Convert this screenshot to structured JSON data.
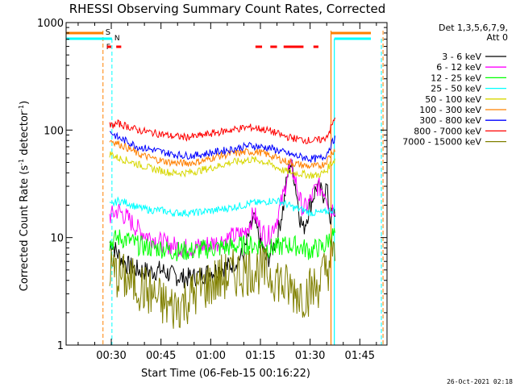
{
  "chart_data": {
    "type": "line",
    "title": "RHESSI Observing Summary Count Rates, Corrected",
    "xlabel": "Start Time (06-Feb-15 00:16:22)",
    "ylabel": "Corrected Count Rate (s⁻¹ detector⁻¹)",
    "ylabel_main": "Corrected Count Rate (s",
    "ylabel_sup1": "-1",
    "ylabel_mid": " detector",
    "ylabel_sup2": "-1",
    "ylabel_end": ")",
    "yscale": "log",
    "ylim": [
      1,
      1000
    ],
    "xlim_minutes": [
      16.37,
      113.2
    ],
    "yticks": [
      1,
      10,
      100,
      1000
    ],
    "ytick_labels": [
      "1",
      "10",
      "100",
      "1000"
    ],
    "xticks_minutes": [
      30,
      45,
      60,
      75,
      90,
      105
    ],
    "xtick_labels": [
      "00:30",
      "00:45",
      "01:00",
      "01:15",
      "01:30",
      "01:45"
    ],
    "grid": false,
    "legend_title": "Det 1,3,5,6,7,9,",
    "legend_subtitle": "Att 0",
    "legend_position": "right",
    "series": [
      {
        "name": "3 - 6 keV",
        "color": "#000000",
        "x": [
          30,
          32,
          35,
          38,
          42,
          45,
          48,
          52,
          55,
          58,
          62,
          66,
          70,
          72,
          73,
          75,
          77,
          78,
          80,
          82,
          83,
          84,
          85,
          86,
          87,
          88,
          90,
          92,
          94,
          95,
          96,
          98
        ],
        "y": [
          9,
          7,
          5.5,
          5,
          4.8,
          5,
          4.5,
          4.2,
          4.3,
          4.6,
          5,
          5.5,
          7,
          12,
          15,
          9,
          6,
          7,
          10,
          20,
          35,
          50,
          40,
          25,
          15,
          12,
          20,
          30,
          25,
          30,
          15,
          18
        ]
      },
      {
        "name": "6 - 12 keV",
        "color": "#ff00ff",
        "x": [
          30,
          32,
          35,
          38,
          42,
          45,
          48,
          52,
          55,
          58,
          62,
          66,
          70,
          72,
          73,
          75,
          77,
          78,
          80,
          82,
          83,
          84,
          85,
          86,
          87,
          88,
          90,
          92,
          94,
          95,
          96,
          98
        ],
        "y": [
          16,
          18,
          15,
          12,
          10,
          9,
          8.5,
          8,
          8,
          8.5,
          9,
          10,
          11,
          14,
          17,
          12,
          10,
          11,
          15,
          25,
          38,
          45,
          40,
          30,
          22,
          18,
          22,
          30,
          28,
          25,
          18,
          20
        ]
      },
      {
        "name": "12 - 25 keV",
        "color": "#00ff00",
        "x": [
          30,
          32,
          35,
          38,
          42,
          45,
          48,
          52,
          55,
          58,
          62,
          66,
          70,
          72,
          75,
          78,
          80,
          82,
          85,
          88,
          90,
          92,
          94,
          95,
          96,
          98
        ],
        "y": [
          9,
          10,
          9.5,
          8.5,
          8,
          8,
          7.5,
          7.5,
          7.5,
          7.8,
          8,
          8.2,
          8.5,
          8.5,
          8.5,
          8,
          8,
          8.5,
          8.5,
          8,
          7.5,
          8,
          8,
          9,
          10,
          11
        ]
      },
      {
        "name": "25 - 50 keV",
        "color": "#00ffff",
        "x": [
          30,
          32,
          35,
          38,
          42,
          45,
          48,
          52,
          55,
          58,
          62,
          66,
          70,
          72,
          75,
          78,
          80,
          82,
          85,
          88,
          90,
          92,
          94,
          95,
          96
        ],
        "y": [
          20,
          22,
          21,
          19,
          18,
          18,
          17,
          17,
          17,
          17.5,
          18,
          19,
          20,
          21,
          21,
          22,
          22,
          21,
          19,
          18,
          17,
          17,
          17,
          17.5,
          18
        ]
      },
      {
        "name": "50 - 100 keV",
        "color": "#d7d700",
        "x": [
          30,
          32,
          35,
          38,
          42,
          45,
          48,
          52,
          55,
          58,
          62,
          66,
          70,
          72,
          75,
          78,
          80,
          82,
          85,
          88,
          90,
          92,
          94,
          95,
          96,
          98
        ],
        "y": [
          60,
          55,
          52,
          48,
          44,
          42,
          40,
          40,
          41,
          43,
          46,
          50,
          52,
          53,
          52,
          48,
          45,
          42,
          40,
          39,
          38,
          38,
          40,
          42,
          48,
          55
        ]
      },
      {
        "name": "100 - 300 keV",
        "color": "#ff8000",
        "x": [
          30,
          32,
          35,
          38,
          42,
          45,
          48,
          52,
          55,
          58,
          62,
          66,
          70,
          72,
          75,
          78,
          80,
          82,
          85,
          88,
          90,
          92,
          94,
          95,
          96,
          98
        ],
        "y": [
          80,
          75,
          68,
          60,
          55,
          52,
          50,
          49,
          50,
          52,
          57,
          60,
          62,
          63,
          62,
          58,
          55,
          52,
          49,
          47,
          46,
          46,
          48,
          52,
          58,
          70
        ]
      },
      {
        "name": "300 - 800 keV",
        "color": "#0000ff",
        "x": [
          30,
          32,
          35,
          38,
          42,
          45,
          48,
          52,
          55,
          58,
          62,
          66,
          70,
          72,
          75,
          78,
          80,
          82,
          85,
          88,
          90,
          92,
          94,
          95,
          96,
          98
        ],
        "y": [
          95,
          85,
          78,
          70,
          66,
          63,
          60,
          58,
          58,
          60,
          63,
          66,
          70,
          72,
          70,
          68,
          65,
          62,
          58,
          56,
          54,
          54,
          56,
          60,
          70,
          90
        ]
      },
      {
        "name": "800 - 7000 keV",
        "color": "#ff0000",
        "x": [
          30,
          32,
          35,
          38,
          42,
          45,
          48,
          52,
          55,
          58,
          62,
          66,
          70,
          72,
          75,
          78,
          80,
          82,
          85,
          88,
          90,
          92,
          94,
          95,
          96,
          98
        ],
        "y": [
          110,
          115,
          108,
          100,
          95,
          92,
          88,
          86,
          87,
          90,
          95,
          100,
          105,
          106,
          103,
          98,
          93,
          88,
          84,
          81,
          80,
          80,
          82,
          88,
          100,
          140
        ]
      },
      {
        "name": "7000 - 15000 keV",
        "color": "#808000",
        "x": [
          30,
          32,
          35,
          38,
          42,
          45,
          48,
          52,
          55,
          58,
          62,
          66,
          70,
          72,
          75,
          78,
          80,
          82,
          85,
          88,
          90,
          92,
          94,
          95,
          96,
          98
        ],
        "y": [
          5,
          4.5,
          4,
          3.6,
          3,
          2.5,
          2.2,
          2.5,
          3,
          3.5,
          4,
          4.5,
          4.8,
          5,
          5,
          4.5,
          4.3,
          3.5,
          3.2,
          3,
          3.2,
          3.5,
          4.5,
          5,
          6,
          7
        ]
      }
    ],
    "annotations": {
      "marker_S_label": "S",
      "marker_F_label": "F",
      "marker_N_label": "N",
      "S_minutes": 27.5,
      "N_minutes": 30.2,
      "orange_solid_minutes": 96.3,
      "cyan_solid_minutes": 97.3,
      "orange_dashed_right_minutes": 112,
      "cyan_dashed_right_minutes": 111.5,
      "flare_bars_minutes": [
        [
          28.7,
          30
        ],
        [
          31.5,
          33
        ],
        [
          73.5,
          75.5
        ],
        [
          78,
          80
        ],
        [
          82,
          88
        ],
        [
          91,
          92.5
        ]
      ]
    },
    "timestamp": "26-Oct-2021 02:18"
  }
}
